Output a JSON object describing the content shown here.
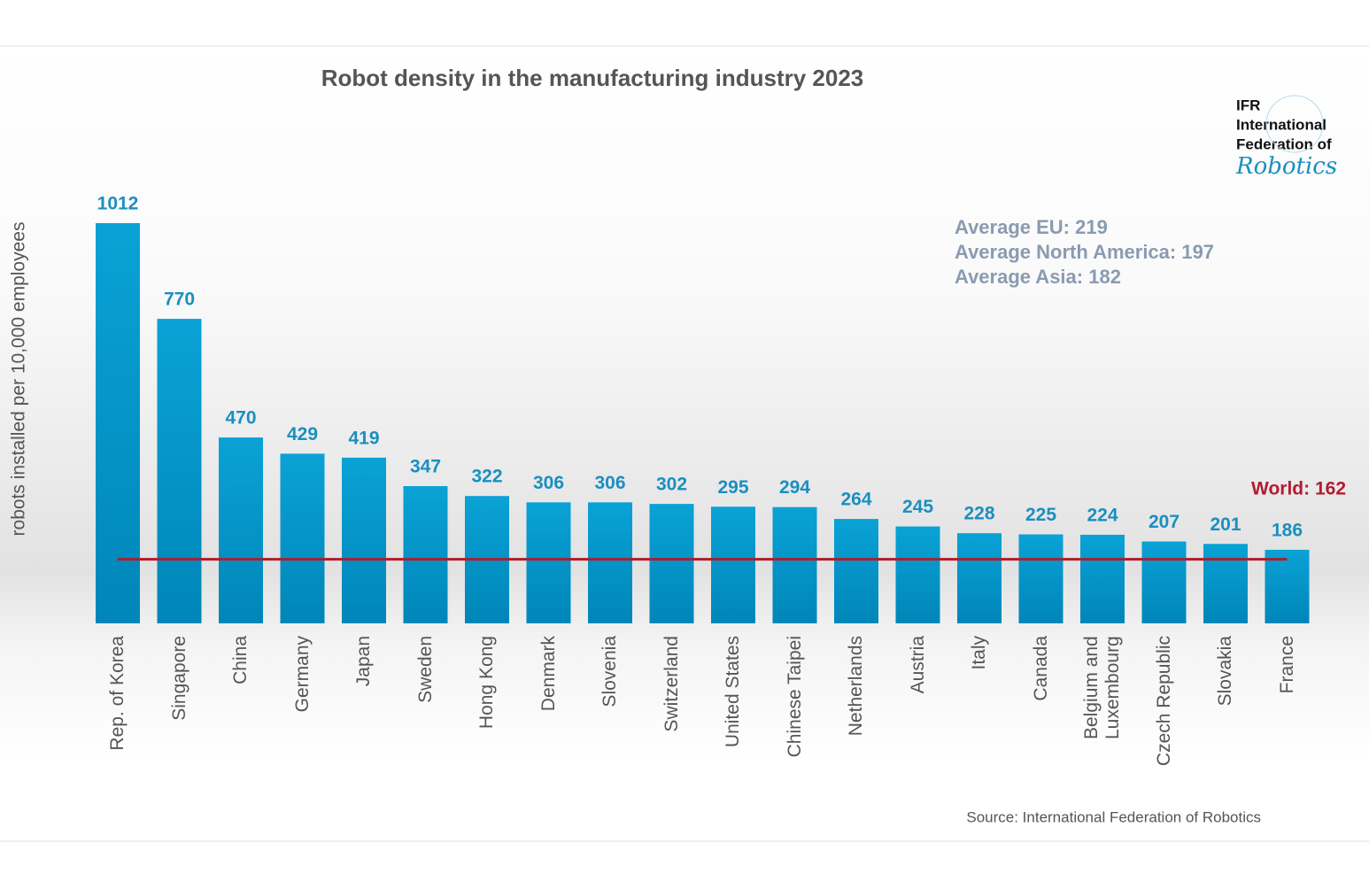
{
  "chart_data": {
    "type": "bar",
    "title": "Robot density in the manufacturing industry 2023",
    "y_label": "robots installed per 10,000 employees",
    "categories": [
      "Rep. of Korea",
      "Singapore",
      "China",
      "Germany",
      "Japan",
      "Sweden",
      "Hong Kong",
      "Denmark",
      "Slovenia",
      "Switzerland",
      "United States",
      "Chinese Taipei",
      "Netherlands",
      "Austria",
      "Italy",
      "Canada",
      "Belgium and Luxembourg",
      "Czech Republic",
      "Slovakia",
      "France"
    ],
    "values": [
      1012,
      770,
      470,
      429,
      419,
      347,
      322,
      306,
      306,
      302,
      295,
      294,
      264,
      245,
      228,
      225,
      224,
      207,
      201,
      186
    ],
    "color": "#0a9ccf",
    "reference_line": {
      "label": "World: 162",
      "value": 162,
      "color": "#b01c2e"
    },
    "annotations": [
      "Average EU: 219",
      "Average North America: 197",
      "Average Asia: 182"
    ],
    "source": "Source: International Federation of Robotics"
  },
  "logo": {
    "lines": [
      "IFR",
      "International",
      "Federation of"
    ],
    "script": "Robotics"
  }
}
